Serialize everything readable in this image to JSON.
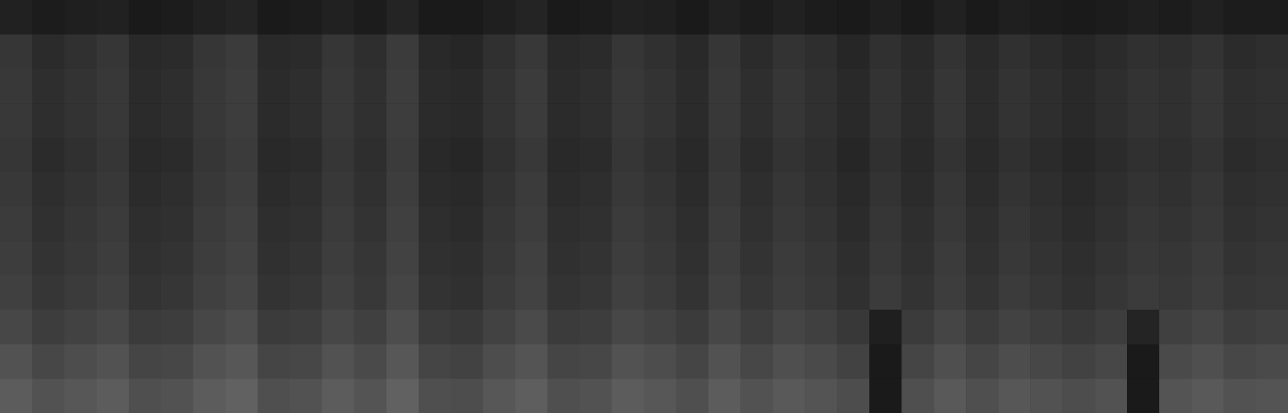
{
  "chart_data": {
    "type": "heatmap",
    "tick_labels": false,
    "zlim": [
      0,
      100
    ],
    "cells": [
      [
        13,
        11,
        12,
        13,
        10,
        11,
        13,
        14,
        10,
        11,
        13,
        11,
        14,
        10,
        10,
        12,
        14,
        10,
        11,
        13,
        12,
        10,
        13,
        11,
        13,
        11,
        10,
        12,
        10,
        13,
        10,
        12,
        11,
        10,
        11,
        12,
        11,
        13,
        11,
        11
      ],
      [
        21,
        17,
        19,
        21,
        16,
        17,
        21,
        23,
        16,
        17,
        21,
        18,
        23,
        16,
        15,
        19,
        22,
        16,
        17,
        21,
        19,
        16,
        21,
        17,
        20,
        18,
        15,
        19,
        16,
        20,
        16,
        19,
        17,
        15,
        17,
        19,
        18,
        20,
        17,
        18
      ],
      [
        22,
        18,
        20,
        22,
        17,
        18,
        22,
        24,
        17,
        18,
        22,
        19,
        24,
        17,
        16,
        20,
        23,
        17,
        18,
        22,
        20,
        17,
        22,
        18,
        21,
        19,
        16,
        20,
        17,
        21,
        17,
        20,
        18,
        16,
        18,
        20,
        19,
        21,
        18,
        19
      ],
      [
        22,
        18,
        20,
        22,
        17,
        18,
        22,
        24,
        17,
        18,
        22,
        19,
        24,
        17,
        16,
        20,
        23,
        17,
        18,
        22,
        20,
        17,
        22,
        18,
        21,
        19,
        16,
        20,
        17,
        21,
        17,
        20,
        18,
        16,
        18,
        20,
        19,
        21,
        18,
        19
      ],
      [
        21,
        17,
        19,
        21,
        16,
        17,
        21,
        23,
        16,
        17,
        21,
        18,
        23,
        16,
        15,
        19,
        22,
        16,
        17,
        21,
        19,
        16,
        21,
        17,
        20,
        18,
        15,
        19,
        16,
        20,
        16,
        19,
        17,
        15,
        17,
        19,
        18,
        20,
        17,
        18
      ],
      [
        22,
        18,
        20,
        22,
        17,
        18,
        22,
        24,
        17,
        18,
        22,
        19,
        24,
        17,
        16,
        20,
        23,
        17,
        18,
        22,
        20,
        17,
        22,
        18,
        21,
        19,
        16,
        20,
        17,
        21,
        17,
        20,
        18,
        16,
        18,
        20,
        19,
        21,
        18,
        19
      ],
      [
        23,
        19,
        21,
        23,
        18,
        19,
        23,
        25,
        18,
        19,
        23,
        20,
        25,
        18,
        17,
        21,
        24,
        18,
        19,
        23,
        21,
        18,
        23,
        19,
        22,
        20,
        17,
        21,
        18,
        22,
        18,
        21,
        19,
        17,
        19,
        21,
        20,
        22,
        19,
        20
      ],
      [
        24,
        20,
        22,
        24,
        19,
        20,
        24,
        26,
        19,
        20,
        24,
        21,
        26,
        19,
        18,
        22,
        25,
        19,
        20,
        24,
        22,
        19,
        24,
        20,
        23,
        21,
        18,
        22,
        19,
        23,
        19,
        22,
        20,
        18,
        20,
        22,
        21,
        23,
        20,
        21
      ],
      [
        25,
        21,
        23,
        25,
        20,
        21,
        25,
        27,
        20,
        21,
        25,
        22,
        27,
        20,
        19,
        23,
        26,
        20,
        21,
        25,
        23,
        20,
        25,
        21,
        24,
        22,
        19,
        23,
        20,
        24,
        20,
        23,
        21,
        19,
        21,
        23,
        22,
        24,
        21,
        22
      ],
      [
        28,
        24,
        26,
        28,
        23,
        24,
        28,
        30,
        23,
        24,
        28,
        25,
        30,
        23,
        22,
        26,
        29,
        23,
        24,
        28,
        26,
        23,
        28,
        24,
        27,
        25,
        22,
        12,
        23,
        27,
        23,
        26,
        24,
        22,
        24,
        14,
        25,
        27,
        24,
        25
      ],
      [
        32,
        28,
        30,
        32,
        27,
        28,
        32,
        34,
        27,
        28,
        32,
        29,
        34,
        27,
        26,
        30,
        33,
        27,
        28,
        32,
        30,
        27,
        32,
        28,
        31,
        29,
        26,
        10,
        27,
        31,
        27,
        30,
        28,
        26,
        28,
        10,
        29,
        31,
        28,
        29
      ],
      [
        36,
        32,
        34,
        36,
        31,
        32,
        36,
        38,
        31,
        32,
        36,
        33,
        38,
        31,
        30,
        34,
        37,
        31,
        32,
        36,
        34,
        31,
        36,
        32,
        35,
        33,
        30,
        10,
        31,
        35,
        31,
        34,
        32,
        30,
        32,
        10,
        33,
        35,
        32,
        33
      ]
    ]
  }
}
